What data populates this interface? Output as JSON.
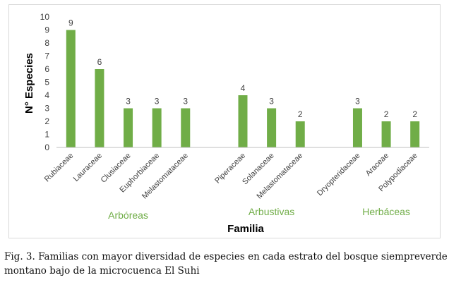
{
  "chart_data": {
    "type": "bar",
    "ylabel": "N° Especies",
    "xlabel": "Familia",
    "ylim": [
      0,
      10
    ],
    "y_ticks": [
      0,
      1,
      2,
      3,
      4,
      5,
      6,
      7,
      8,
      9,
      10
    ],
    "grid": false,
    "legend": "none",
    "bar_color": "#70ad47",
    "group_label_color": "#70ad47",
    "categories": [
      "Rubiaceae",
      "Lauraceae",
      "Clusiaceae",
      "Euphorbiaceae",
      "Melastomataceae",
      "Piperaceae",
      "Solanaceae",
      "Melastomataceae",
      "Dryopteridaceae",
      "Araceae",
      "Polypodiaceae"
    ],
    "values": [
      9,
      6,
      3,
      3,
      3,
      4,
      3,
      2,
      3,
      2,
      2
    ],
    "groups": [
      {
        "label": "Arbóreas",
        "categories": [
          "Rubiaceae",
          "Lauraceae",
          "Clusiaceae",
          "Euphorbiaceae",
          "Melastomataceae"
        ]
      },
      {
        "label": "Arbustivas",
        "categories": [
          "Piperaceae",
          "Solanaceae",
          "Melastomataceae"
        ]
      },
      {
        "label": "Herbáceas",
        "categories": [
          "Dryopteridaceae",
          "Araceae",
          "Polypodiaceae"
        ]
      }
    ]
  },
  "caption": {
    "line1": "Fig. 3. Familias con mayor diversidad de especies en cada estrato del bosque siempreverde",
    "line2": "montano bajo de la microcuenca El Suhi"
  }
}
